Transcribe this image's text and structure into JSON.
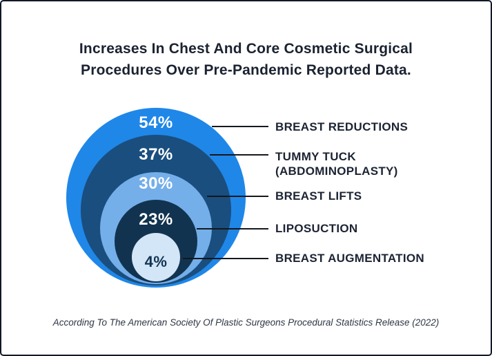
{
  "title": "Increases In Chest And Core Cosmetic Surgical Procedures Over Pre-Pandemic Reported Data.",
  "source_note": "According To The American Society Of Plastic Surgeons Procedural Statistics Release (2022)",
  "colors": {
    "border": "#111827",
    "background": "#ffffff",
    "title_text": "#1b2230",
    "label_text": "#1c2333",
    "leader_line": "#15181d"
  },
  "chart_data": {
    "type": "nested-bubble",
    "title": "Increases In Chest And Core Cosmetic Surgical Procedures Over Pre-Pandemic Reported Data.",
    "legend_position": "right",
    "items": [
      {
        "label": "BREAST REDUCTIONS",
        "value": 54,
        "value_label": "54%",
        "circle_color": "#1f87e8",
        "value_text_color": "#ffffff"
      },
      {
        "label": "TUMMY TUCK (ABDOMINOPLASTY)",
        "value": 37,
        "value_label": "37%",
        "circle_color": "#1a4e7e",
        "value_text_color": "#ffffff"
      },
      {
        "label": "BREAST LIFTS",
        "value": 30,
        "value_label": "30%",
        "circle_color": "#74afea",
        "value_text_color": "#ffffff"
      },
      {
        "label": "LIPOSUCTION",
        "value": 23,
        "value_label": "23%",
        "circle_color": "#123350",
        "value_text_color": "#ffffff"
      },
      {
        "label": "BREAST AUGMENTATION",
        "value": 4,
        "value_label": "4%",
        "circle_color": "#d3e6f8",
        "value_text_color": "#123350"
      }
    ]
  }
}
